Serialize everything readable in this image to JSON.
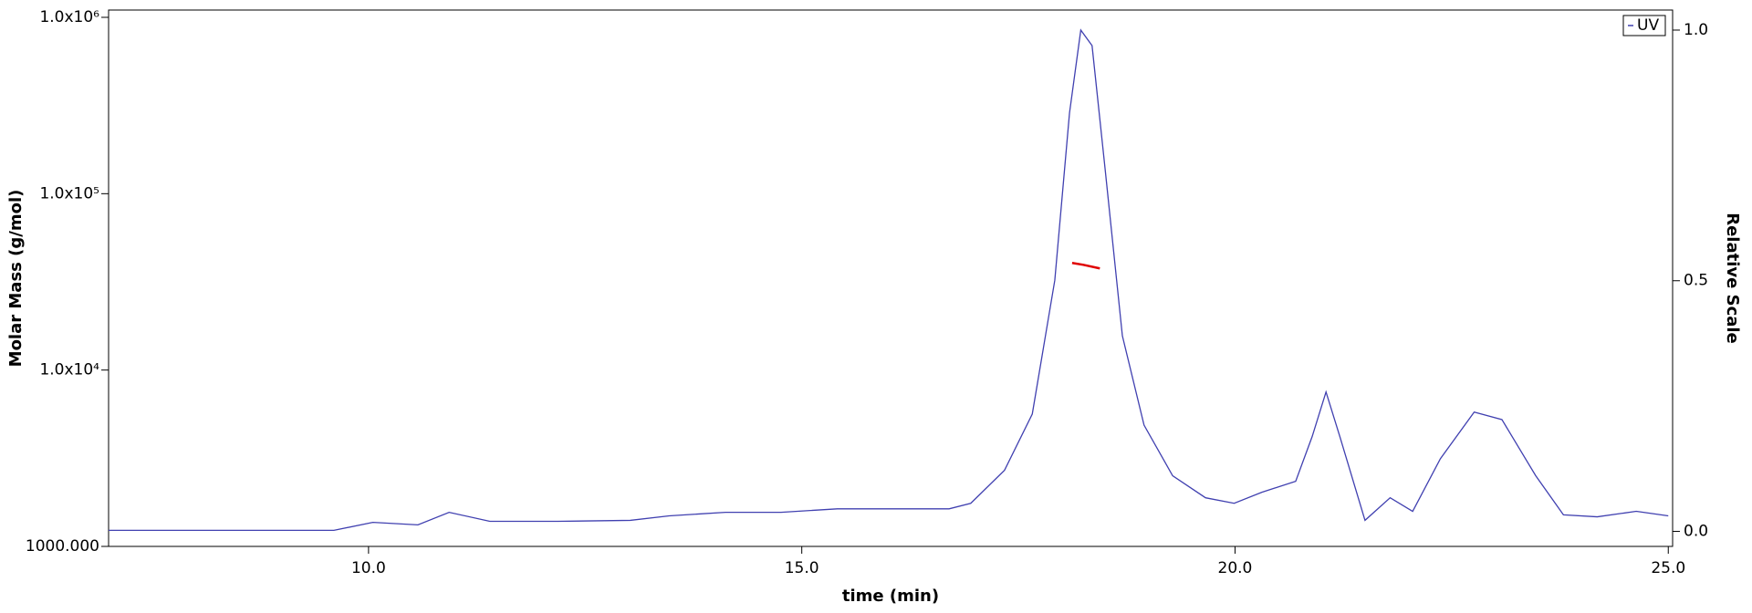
{
  "chart_data": {
    "type": "line",
    "x_label": "time (min)",
    "y_label": "Molar Mass (g/mol)",
    "y2_label": "Relative Scale",
    "xlim": [
      7,
      25.05
    ],
    "ylim": [
      1000,
      1100000
    ],
    "y2lim": [
      -0.03,
      1.04
    ],
    "log_y": true,
    "xticks": [
      {
        "value": 10,
        "label": "10.0"
      },
      {
        "value": 15,
        "label": "15.0"
      },
      {
        "value": 20,
        "label": "20.0"
      },
      {
        "value": 25,
        "label": "25.0"
      }
    ],
    "yticks": [
      {
        "value": 1000,
        "label": "1000.000"
      },
      {
        "value": 10000,
        "label": "1.0x10⁴"
      },
      {
        "value": 100000,
        "label": "1.0x10⁵"
      },
      {
        "value": 1000000,
        "label": "1.0x10⁶"
      }
    ],
    "y2ticks": [
      {
        "value": 0,
        "label": "0.0"
      },
      0.5,
      {
        "value": 1,
        "label": "1.0"
      }
    ],
    "legend": "upper right",
    "series": [
      {
        "name": "UV",
        "axis": "y2",
        "color": "#4040b0",
        "x": [
          7.0,
          8.31,
          9.6,
          10.05,
          10.57,
          10.93,
          11.4,
          12.18,
          13.02,
          13.47,
          14.12,
          14.76,
          15.41,
          16.05,
          16.7,
          16.95,
          17.34,
          17.66,
          17.92,
          18.09,
          18.22,
          18.35,
          18.5,
          18.7,
          18.95,
          19.28,
          19.66,
          19.99,
          20.31,
          20.7,
          20.89,
          21.05,
          21.21,
          21.5,
          21.79,
          22.05,
          22.37,
          22.76,
          23.08,
          23.47,
          23.79,
          24.18,
          24.63,
          25.0
        ],
        "values": [
          0.002,
          0.002,
          0.002,
          0.018,
          0.013,
          0.038,
          0.02,
          0.02,
          0.022,
          0.031,
          0.038,
          0.038,
          0.045,
          0.045,
          0.045,
          0.056,
          0.122,
          0.234,
          0.501,
          0.835,
          1.0,
          0.969,
          0.724,
          0.39,
          0.212,
          0.111,
          0.067,
          0.056,
          0.078,
          0.1,
          0.189,
          0.278,
          0.189,
          0.022,
          0.067,
          0.04,
          0.145,
          0.238,
          0.223,
          0.111,
          0.033,
          0.029,
          0.04,
          0.031
        ]
      },
      {
        "color": "#e00000",
        "x": [
          18.12,
          18.25,
          18.44
        ],
        "values": [
          40500,
          39500,
          37700
        ]
      }
    ]
  }
}
